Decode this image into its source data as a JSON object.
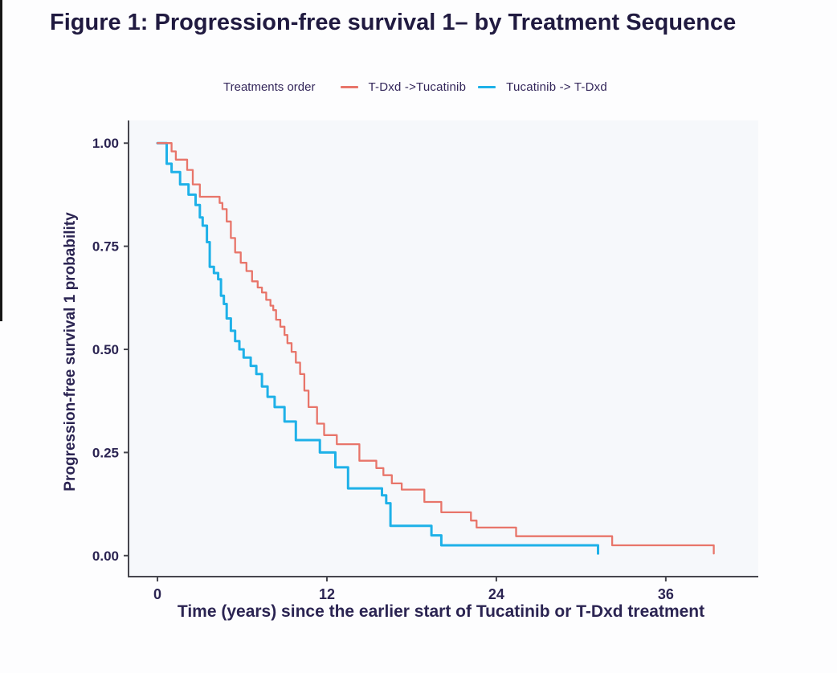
{
  "page": {
    "title": "Figure 1: Progression-free survival 1– by Treatment Sequence"
  },
  "legend": {
    "title": "Treatments order",
    "items": [
      {
        "label": "T-Dxd ->Tucatinib",
        "color": "#e8756a"
      },
      {
        "label": "Tucatinib -> T-Dxd",
        "color": "#1eb1e8"
      }
    ]
  },
  "colors": {
    "title_text": "#201a40",
    "text": "#2b2452",
    "axis": "#46464e",
    "panel_bg": "#f6f8fb",
    "page_bg": "#fdfdfe",
    "tdxd_first": "#e8756a",
    "tucatinib_first": "#1eb1e8"
  },
  "chart_data": {
    "type": "line",
    "subtype": "kaplan-meier-step",
    "title": "Figure 1: Progression-free survival 1– by Treatment Sequence",
    "xlabel": "Time (years) since the earlier start of Tucatinib or T-Dxd treatment",
    "ylabel": "Progression-free survival 1 probability",
    "legend_title": "Treatments order",
    "legend_position": "top",
    "grid": false,
    "x_ticks": [
      0,
      12,
      24,
      36
    ],
    "y_ticks": [
      1.0,
      0.75,
      0.5,
      0.25,
      0.0
    ],
    "xlim": [
      -2.05,
      42.55
    ],
    "ylim": [
      -0.051,
      1.055
    ],
    "series": [
      {
        "name": "T-Dxd ->Tucatinib",
        "color": "#e8756a",
        "points": [
          [
            0,
            1.0
          ],
          [
            1.0,
            0.98
          ],
          [
            1.3,
            0.96
          ],
          [
            2.1,
            0.935
          ],
          [
            2.5,
            0.9
          ],
          [
            3.0,
            0.87
          ],
          [
            4.4,
            0.855
          ],
          [
            4.6,
            0.84
          ],
          [
            4.9,
            0.81
          ],
          [
            5.2,
            0.77
          ],
          [
            5.5,
            0.735
          ],
          [
            5.9,
            0.71
          ],
          [
            6.3,
            0.69
          ],
          [
            6.7,
            0.665
          ],
          [
            7.1,
            0.65
          ],
          [
            7.4,
            0.638
          ],
          [
            7.7,
            0.62
          ],
          [
            8.0,
            0.606
          ],
          [
            8.2,
            0.595
          ],
          [
            8.4,
            0.572
          ],
          [
            8.7,
            0.555
          ],
          [
            9.0,
            0.535
          ],
          [
            9.2,
            0.515
          ],
          [
            9.5,
            0.494
          ],
          [
            9.8,
            0.468
          ],
          [
            10.1,
            0.44
          ],
          [
            10.4,
            0.4
          ],
          [
            10.7,
            0.36
          ],
          [
            11.3,
            0.32
          ],
          [
            11.8,
            0.292
          ],
          [
            12.7,
            0.27
          ],
          [
            14.3,
            0.23
          ],
          [
            15.5,
            0.212
          ],
          [
            16.0,
            0.195
          ],
          [
            16.6,
            0.175
          ],
          [
            17.3,
            0.16
          ],
          [
            18.9,
            0.13
          ],
          [
            20.1,
            0.105
          ],
          [
            22.2,
            0.085
          ],
          [
            22.6,
            0.068
          ],
          [
            25.4,
            0.047
          ],
          [
            32.2,
            0.025
          ],
          [
            39.4,
            0.005
          ]
        ]
      },
      {
        "name": "Tucatinib -> T-Dxd",
        "color": "#1eb1e8",
        "points": [
          [
            0,
            1.0
          ],
          [
            0.65,
            0.95
          ],
          [
            1.0,
            0.93
          ],
          [
            1.6,
            0.9
          ],
          [
            2.2,
            0.875
          ],
          [
            2.7,
            0.85
          ],
          [
            3.0,
            0.82
          ],
          [
            3.2,
            0.8
          ],
          [
            3.5,
            0.76
          ],
          [
            3.7,
            0.7
          ],
          [
            4.0,
            0.685
          ],
          [
            4.3,
            0.67
          ],
          [
            4.5,
            0.63
          ],
          [
            4.7,
            0.61
          ],
          [
            4.9,
            0.575
          ],
          [
            5.2,
            0.545
          ],
          [
            5.5,
            0.52
          ],
          [
            5.8,
            0.5
          ],
          [
            6.1,
            0.48
          ],
          [
            6.6,
            0.46
          ],
          [
            7.0,
            0.44
          ],
          [
            7.4,
            0.41
          ],
          [
            7.8,
            0.385
          ],
          [
            8.3,
            0.36
          ],
          [
            9.0,
            0.325
          ],
          [
            9.8,
            0.28
          ],
          [
            11.5,
            0.25
          ],
          [
            12.6,
            0.214
          ],
          [
            13.5,
            0.163
          ],
          [
            15.9,
            0.146
          ],
          [
            16.2,
            0.127
          ],
          [
            16.5,
            0.072
          ],
          [
            19.4,
            0.049
          ],
          [
            20.1,
            0.025
          ],
          [
            31.2,
            0.005
          ]
        ]
      }
    ]
  }
}
